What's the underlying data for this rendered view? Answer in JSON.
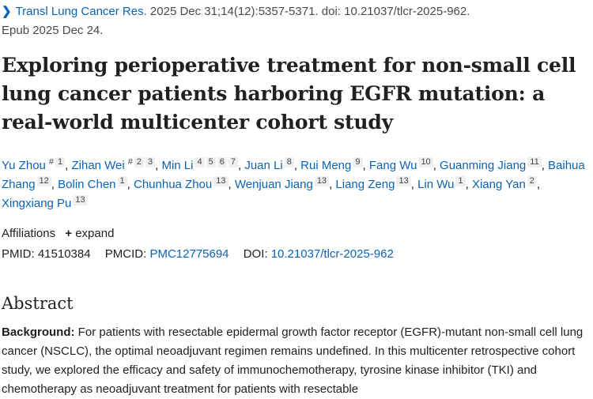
{
  "citation": {
    "journal": "Transl Lung Cancer Res.",
    "details": " 2025 Dec 31;14(12):5357-5371. doi: 10.21037/tlcr-2025-962.",
    "epub": "Epub 2025 Dec 24."
  },
  "title": "Exploring perioperative treatment for non-small cell lung cancer patients harboring EGFR mutation: a real-world multicenter cohort study",
  "authors": [
    {
      "name": "Yu Zhou",
      "equal": "#",
      "affs": [
        "1"
      ]
    },
    {
      "name": "Zihan Wei",
      "equal": "#",
      "affs": [
        "2",
        "3"
      ]
    },
    {
      "name": "Min Li",
      "affs": [
        "4",
        "5",
        "6",
        "7"
      ]
    },
    {
      "name": "Juan Li",
      "affs": [
        "8"
      ]
    },
    {
      "name": "Rui Meng",
      "affs": [
        "9"
      ]
    },
    {
      "name": "Fang Wu",
      "affs": [
        "10"
      ]
    },
    {
      "name": "Guanming Jiang",
      "affs": [
        "11"
      ]
    },
    {
      "name": "Baihua Zhang",
      "affs": [
        "12"
      ]
    },
    {
      "name": "Bolin Chen",
      "affs": [
        "1"
      ]
    },
    {
      "name": "Chunhua Zhou",
      "affs": [
        "13"
      ]
    },
    {
      "name": "Wenjuan Jiang",
      "affs": [
        "13"
      ]
    },
    {
      "name": "Liang Zeng",
      "affs": [
        "13"
      ]
    },
    {
      "name": "Lin Wu",
      "affs": [
        "1"
      ]
    },
    {
      "name": "Xiang Yan",
      "affs": [
        "2"
      ]
    },
    {
      "name": "Xingxiang Pu",
      "affs": [
        "13"
      ]
    }
  ],
  "affiliations": {
    "label": "Affiliations",
    "expand": "expand"
  },
  "ids": {
    "pmid_label": "PMID:",
    "pmid": "41510384",
    "pmcid_label": "PMCID:",
    "pmcid": "PMC12775694",
    "doi_label": "DOI:",
    "doi": "10.21037/tlcr-2025-962"
  },
  "abstract": {
    "heading": "Abstract",
    "background_label": "Background:",
    "background_text": " For patients with resectable epidermal growth factor receptor (EGFR)-mutant non-small cell lung cancer (NSCLC), the optimal neoadjuvant regimen remains undefined. In this multicenter retrospective cohort study, we explored the efficacy and safety of immunochemotherapy, tyrosine kinase inhibitor (TKI) and chemotherapy as neoadjuvant treatment for patients with resectable"
  }
}
